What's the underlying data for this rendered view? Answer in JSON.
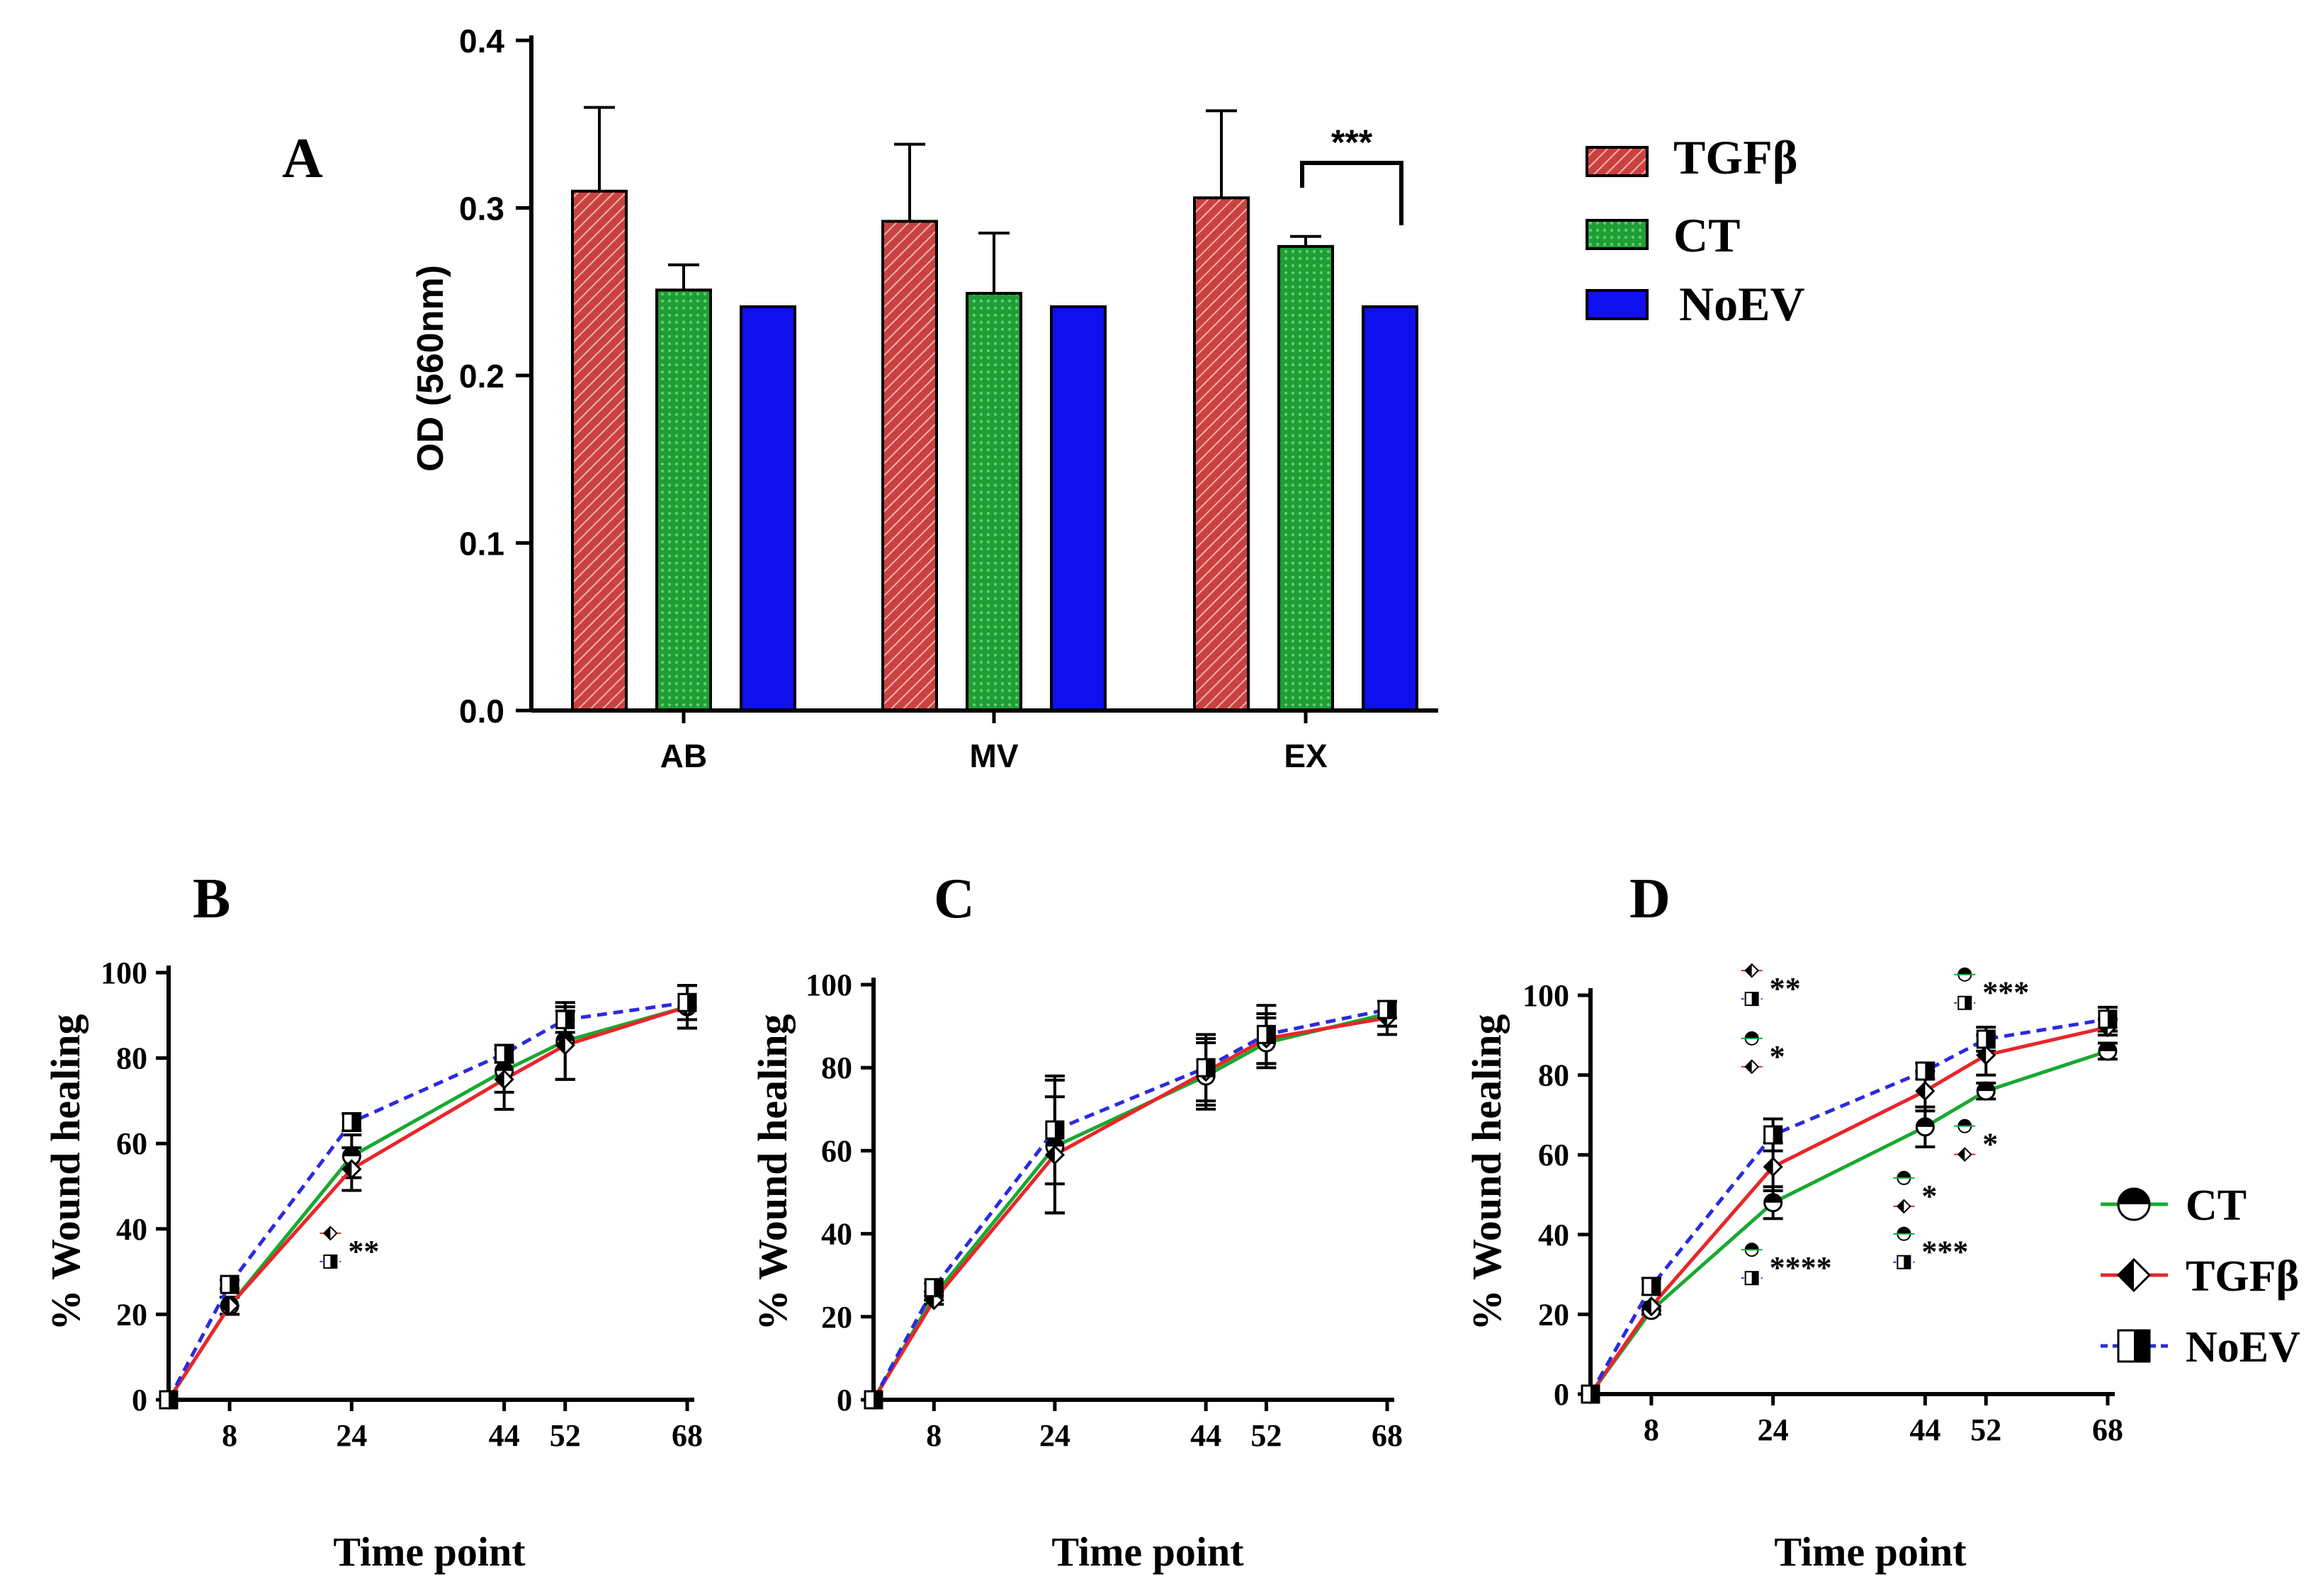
{
  "colors": {
    "tgf": "#e8262a",
    "tgf_fill": "#c9423f",
    "ct": "#19a832",
    "ct_fill": "#23a33a",
    "noev": "#1010ee",
    "noev_dash": "#2a2ae0"
  },
  "chart_data": [
    {
      "panel": "A",
      "type": "bar",
      "ylabel": "OD (560nm)",
      "ylim": [
        0,
        0.4
      ],
      "yticks": [
        "0.0",
        "0.1",
        "0.2",
        "0.3",
        "0.4"
      ],
      "categories": [
        "AB",
        "MV",
        "EX"
      ],
      "series": [
        {
          "name": "TGFβ",
          "values": [
            0.31,
            0.292,
            0.306
          ],
          "errors": [
            0.05,
            0.046,
            0.052
          ]
        },
        {
          "name": "CT",
          "values": [
            0.251,
            0.249,
            0.277
          ],
          "errors": [
            0.015,
            0.036,
            0.006
          ]
        },
        {
          "name": "NoEV",
          "values": [
            0.241,
            0.241,
            0.241
          ],
          "errors": [
            0,
            0,
            0
          ]
        }
      ],
      "significance": {
        "label": "***",
        "category": "EX",
        "between": [
          "CT",
          "NoEV"
        ]
      },
      "legend": [
        "TGFβ",
        "CT",
        "NoEV"
      ]
    },
    {
      "panel": "B",
      "type": "line",
      "xlabel": "Time point",
      "ylabel": "% Wound healing",
      "ylim": [
        0,
        100
      ],
      "yticks": [
        "0",
        "20",
        "40",
        "60",
        "80",
        "100"
      ],
      "x": [
        0,
        8,
        24,
        44,
        52,
        68
      ],
      "xticks": [
        "8",
        "24",
        "44",
        "52",
        "68"
      ],
      "series": [
        {
          "name": "CT",
          "values": [
            0,
            22,
            57,
            77,
            84,
            92
          ],
          "errors": [
            0,
            2,
            5,
            5,
            9,
            5
          ]
        },
        {
          "name": "TGFβ",
          "values": [
            0,
            22,
            54,
            75,
            83,
            92
          ],
          "errors": [
            0,
            2,
            5,
            7,
            8,
            5
          ]
        },
        {
          "name": "NoEV",
          "values": [
            0,
            27,
            65,
            81,
            89,
            93
          ],
          "errors": [
            0,
            1,
            2,
            2,
            3,
            4
          ]
        }
      ],
      "annotations": [
        {
          "text": "**",
          "symbols": [
            "TGFβ",
            "NoEV"
          ],
          "x": 24,
          "y": 36
        }
      ]
    },
    {
      "panel": "C",
      "type": "line",
      "xlabel": "Time point",
      "ylabel": "% Wound healing",
      "ylim": [
        0,
        100
      ],
      "yticks": [
        "0",
        "20",
        "40",
        "60",
        "80",
        "100"
      ],
      "x": [
        0,
        8,
        24,
        44,
        52,
        68
      ],
      "xticks": [
        "8",
        "24",
        "44",
        "52",
        "68"
      ],
      "series": [
        {
          "name": "CT",
          "values": [
            0,
            25,
            61,
            78,
            86,
            93
          ],
          "errors": [
            0,
            1,
            16,
            8,
            6,
            3
          ]
        },
        {
          "name": "TGFβ",
          "values": [
            0,
            24,
            59,
            79,
            87,
            92
          ],
          "errors": [
            0,
            1,
            14,
            8,
            6,
            4
          ]
        },
        {
          "name": "NoEV",
          "values": [
            0,
            27,
            65,
            80,
            88,
            94
          ],
          "errors": [
            0,
            1,
            13,
            8,
            7,
            2
          ]
        }
      ],
      "annotations": []
    },
    {
      "panel": "D",
      "type": "line",
      "xlabel": "Time point",
      "ylabel": "% Wound healing",
      "ylim": [
        0,
        100
      ],
      "yticks": [
        "0",
        "20",
        "40",
        "60",
        "80",
        "100"
      ],
      "x": [
        0,
        8,
        24,
        44,
        52,
        68
      ],
      "xticks": [
        "8",
        "24",
        "44",
        "52",
        "68"
      ],
      "series": [
        {
          "name": "CT",
          "values": [
            0,
            21,
            48,
            67,
            76,
            86
          ],
          "errors": [
            0,
            1,
            4,
            5,
            2,
            2
          ]
        },
        {
          "name": "TGFβ",
          "values": [
            0,
            22,
            57,
            76,
            85,
            92
          ],
          "errors": [
            0,
            1,
            6,
            5,
            5,
            2
          ]
        },
        {
          "name": "NoEV",
          "values": [
            0,
            27,
            65,
            81,
            89,
            94
          ],
          "errors": [
            0,
            2,
            4,
            2,
            3,
            3
          ]
        }
      ],
      "annotations": [
        {
          "text": "**",
          "symbols": [
            "TGFβ",
            "NoEV"
          ],
          "x": 24,
          "y": 103
        },
        {
          "text": "*",
          "symbols": [
            "CT",
            "TGFβ"
          ],
          "x": 24,
          "y": 86
        },
        {
          "text": "****",
          "symbols": [
            "CT",
            "NoEV"
          ],
          "x": 24,
          "y": 33
        },
        {
          "text": "*",
          "symbols": [
            "CT",
            "TGFβ"
          ],
          "x": 44,
          "y": 51
        },
        {
          "text": "***",
          "symbols": [
            "CT",
            "NoEV"
          ],
          "x": 44,
          "y": 37
        },
        {
          "text": "***",
          "symbols": [
            "CT",
            "NoEV"
          ],
          "x": 52,
          "y": 102
        },
        {
          "text": "*",
          "symbols": [
            "CT",
            "TGFβ"
          ],
          "x": 52,
          "y": 64
        }
      ],
      "legend": [
        "CT",
        "TGFβ",
        "NoEV"
      ]
    }
  ]
}
